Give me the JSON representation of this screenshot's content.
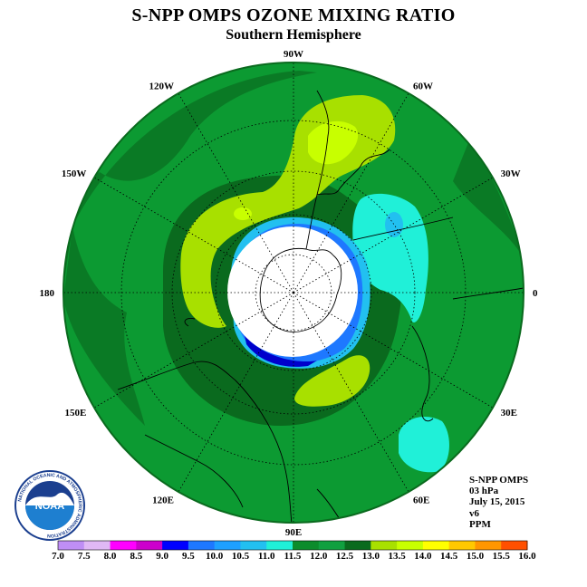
{
  "header": {
    "title": "S-NPP OMPS OZONE MIXING RATIO",
    "subtitle": "Southern Hemisphere"
  },
  "map": {
    "projection": "polar-stereographic-south",
    "longitude_labels": [
      {
        "text": "90W",
        "lon": -90
      },
      {
        "text": "60W",
        "lon": -60
      },
      {
        "text": "30W",
        "lon": -30
      },
      {
        "text": "0",
        "lon": 0
      },
      {
        "text": "30E",
        "lon": 30
      },
      {
        "text": "60E",
        "lon": 60
      },
      {
        "text": "90E",
        "lon": 90
      },
      {
        "text": "120E",
        "lon": 120
      },
      {
        "text": "150E",
        "lon": 150
      },
      {
        "text": "180",
        "lon": 180
      },
      {
        "text": "150W",
        "lon": -150
      },
      {
        "text": "120W",
        "lon": -120
      }
    ],
    "graticule": "dotted",
    "field_background_value_range": [
      11.5,
      12.0
    ]
  },
  "info": {
    "lines": [
      "S-NPP OMPS",
      "03 hPa",
      "July 15, 2015",
      "v6",
      "PPM"
    ]
  },
  "colorbar": {
    "labels": [
      "7.0",
      "7.5",
      "8.0",
      "8.5",
      "9.0",
      "9.5",
      "10.0",
      "10.5",
      "11.0",
      "11.5",
      "12.0",
      "12.5",
      "13.0",
      "13.5",
      "14.0",
      "14.5",
      "15.0",
      "15.5",
      "16.0"
    ],
    "colors": [
      "#bf8ef5",
      "#e0b8f5",
      "#ff00ff",
      "#cc00cc",
      "#0000ff",
      "#1e78ff",
      "#1ea0ff",
      "#22c0f0",
      "#20f0d8",
      "#0c8c2c",
      "#10a040",
      "#0a6a1e",
      "#a8e000",
      "#c8ff00",
      "#ffff00",
      "#ffc800",
      "#ff9600",
      "#ff5000",
      "#ff0000",
      "#8b5a3c"
    ]
  },
  "logo": {
    "text": "NOAA",
    "ring_text": "NATIONAL OCEANIC AND ATMOSPHERIC ADMINISTRATION"
  }
}
